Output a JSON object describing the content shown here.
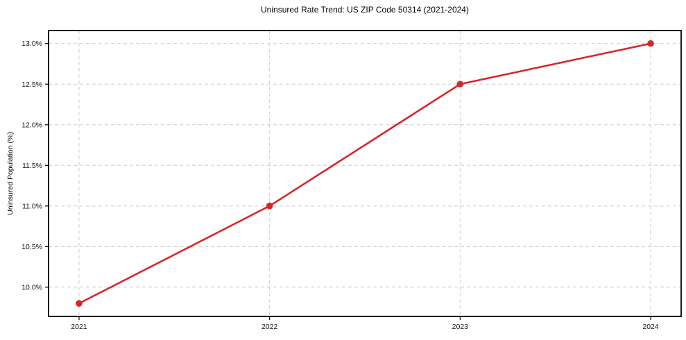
{
  "chart_data": {
    "type": "line",
    "title": "Uninsured Rate Trend: US ZIP Code 50314 (2021-2024)",
    "xlabel": "",
    "ylabel": "Uninsured Population (%)",
    "x": [
      2021,
      2022,
      2023,
      2024
    ],
    "values": [
      9.8,
      11.0,
      12.5,
      13.0
    ],
    "xtick_labels": [
      "2021",
      "2022",
      "2023",
      "2024"
    ],
    "ytick_values": [
      10.0,
      10.5,
      11.0,
      11.5,
      12.0,
      12.5,
      13.0
    ],
    "ytick_labels": [
      "10.0%",
      "10.5%",
      "11.0%",
      "11.5%",
      "12.0%",
      "12.5%",
      "13.0%"
    ],
    "xlim": [
      2020.84,
      2024.16
    ],
    "ylim": [
      9.64,
      13.16
    ],
    "grid": "both, dashed",
    "legend_position": "none",
    "line_color": "#d62728",
    "marker": "circle",
    "grid_color": "#cccccc",
    "axis_color": "#000000",
    "background_color": "#ffffff"
  }
}
